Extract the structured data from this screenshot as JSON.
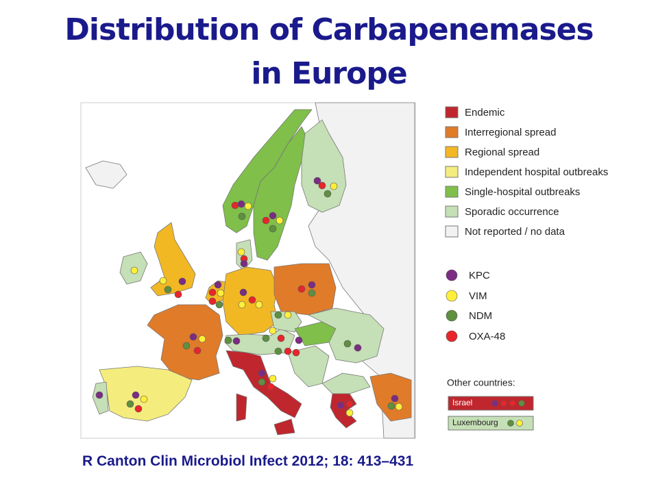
{
  "title": "Distribution of Carbapenemases in Europe",
  "legend": [
    "Endemic",
    "Interregional spread",
    "Regional spread",
    "Independent hospital outbreaks",
    "Single-hospital outbreaks",
    "Sporadic occurrence",
    "Not reported / no data"
  ],
  "enzymes": [
    "KPC",
    "VIM",
    "NDM",
    "OXA-48"
  ],
  "other_countries": {
    "heading": "Other countries:",
    "items": [
      "Israel",
      "Luxembourg"
    ]
  },
  "citation": "R Canton Clin Microbiol Infect 2012; 18: 413–431"
}
